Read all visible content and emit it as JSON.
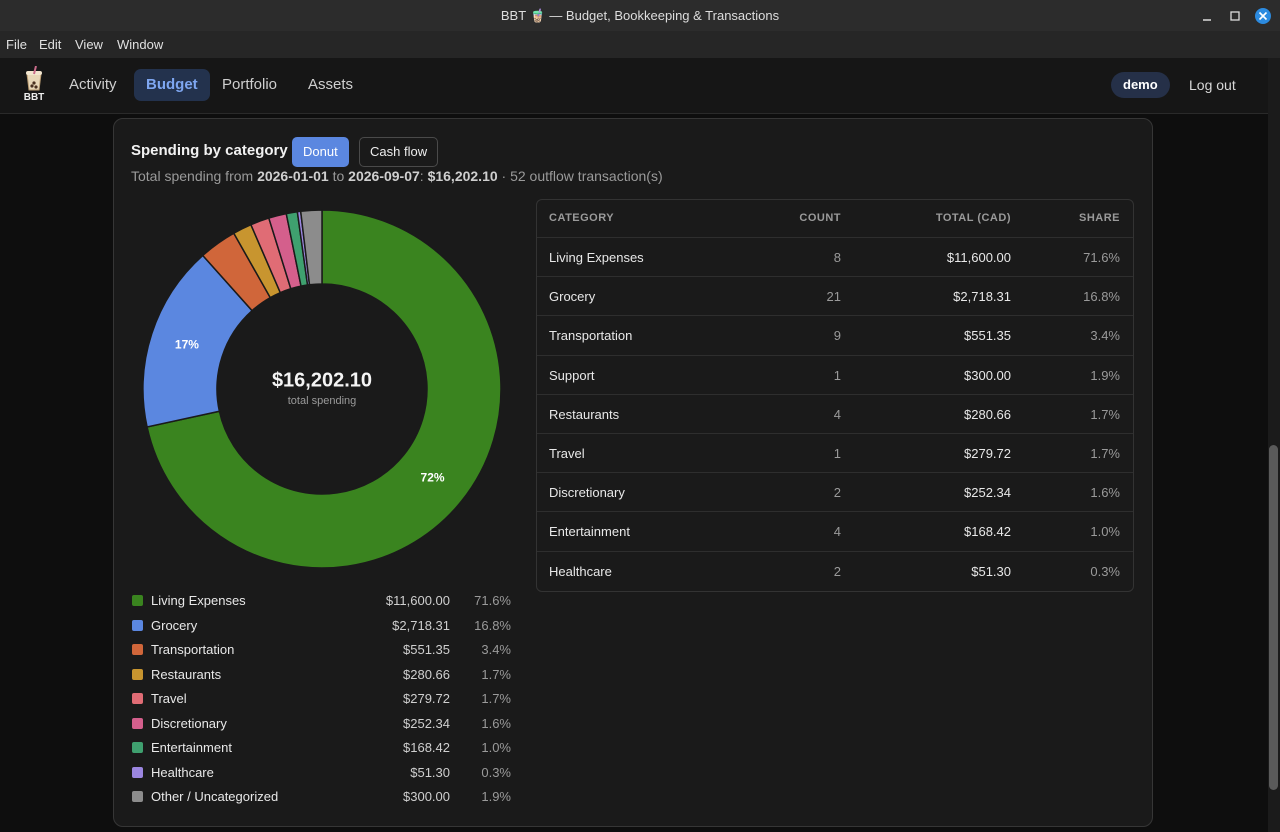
{
  "window": {
    "title": "BBT 🧋 — Budget, Bookkeeping & Transactions"
  },
  "menu": [
    "File",
    "Edit",
    "View",
    "Window"
  ],
  "nav": {
    "logo": "BBT",
    "items": [
      "Activity",
      "Budget",
      "Portfolio",
      "Assets"
    ],
    "active": 1,
    "user": "demo",
    "logout": "Log out"
  },
  "header": {
    "title": "Spending by category",
    "buttons": [
      "Donut",
      "Cash flow"
    ],
    "active_button": 0,
    "subtitle": [
      {
        "text": "Total spending from ",
        "bold": false
      },
      {
        "text": "2026-01-01",
        "bold": true
      },
      {
        "text": " to ",
        "bold": false
      },
      {
        "text": "2026-09-07",
        "bold": true
      },
      {
        "text": ": ",
        "bold": false
      },
      {
        "text": "$16,202.10",
        "bold": true
      },
      {
        "text": " · 52 outflow transaction(s)",
        "bold": false
      }
    ]
  },
  "chart_data": {
    "type": "pie",
    "categories": [
      "Living Expenses",
      "Grocery",
      "Transportation",
      "Restaurants",
      "Travel",
      "Discretionary",
      "Entertainment",
      "Healthcare",
      "Other / Uncategorized"
    ],
    "values": [
      71.6,
      16.8,
      3.4,
      1.7,
      1.7,
      1.6,
      1.0,
      0.3,
      1.9
    ],
    "value_labels": [
      "72%",
      "17%",
      null,
      null,
      null,
      null,
      null,
      null,
      null
    ],
    "colors": [
      "#3a841f",
      "#5b87e0",
      "#d0663a",
      "#c8952f",
      "#e06c75",
      "#d45f8c",
      "#3fa06f",
      "#9b86e0",
      "#8c8c8c"
    ],
    "center_label": "$16,202.10",
    "center_sublabel": "total spending"
  },
  "legend": {
    "amounts": [
      "$11,600.00",
      "$2,718.31",
      "$551.35",
      "$280.66",
      "$279.72",
      "$252.34",
      "$168.42",
      "$51.30",
      "$300.00"
    ],
    "shares": [
      "71.6%",
      "16.8%",
      "3.4%",
      "1.7%",
      "1.7%",
      "1.6%",
      "1.0%",
      "0.3%",
      "1.9%"
    ]
  },
  "table": {
    "columns": [
      "CATEGORY",
      "COUNT",
      "TOTAL (CAD)",
      "SHARE"
    ],
    "rows": [
      [
        "Living Expenses",
        "8",
        "$11,600.00",
        "71.6%"
      ],
      [
        "Grocery",
        "21",
        "$2,718.31",
        "16.8%"
      ],
      [
        "Transportation",
        "9",
        "$551.35",
        "3.4%"
      ],
      [
        "Support",
        "1",
        "$300.00",
        "1.9%"
      ],
      [
        "Restaurants",
        "4",
        "$280.66",
        "1.7%"
      ],
      [
        "Travel",
        "1",
        "$279.72",
        "1.7%"
      ],
      [
        "Discretionary",
        "2",
        "$252.34",
        "1.6%"
      ],
      [
        "Entertainment",
        "4",
        "$168.42",
        "1.0%"
      ],
      [
        "Healthcare",
        "2",
        "$51.30",
        "0.3%"
      ]
    ]
  }
}
